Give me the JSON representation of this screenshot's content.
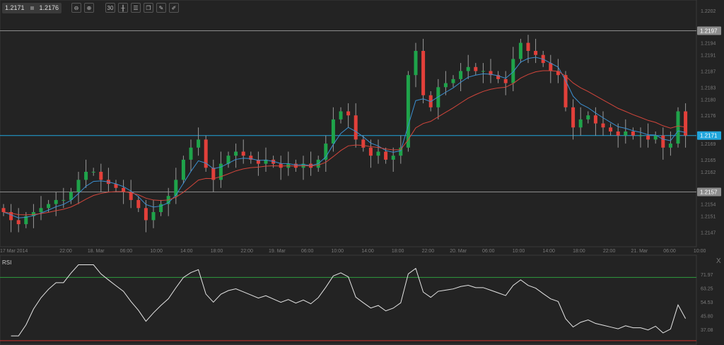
{
  "toolbar": {
    "bid": "1.2171",
    "ask": "1.2176",
    "timeframe": "30",
    "buttons": [
      "zoom-out",
      "zoom-in",
      "timeframe",
      "indicators",
      "settings",
      "clone",
      "edit",
      "draw"
    ]
  },
  "colors": {
    "up": "#1fa34a",
    "down": "#e2403a",
    "ema_fast": "#3b8fd0",
    "ema_slow": "#d2453b",
    "current": "#21a6dd",
    "level": "#8c8c8c",
    "rsi_high": "#2e9b3e",
    "rsi_low": "#c8302c"
  },
  "chart_data": [
    {
      "type": "candlestick",
      "title": "",
      "price_axis": {
        "min": 1.2144,
        "max": 1.2204,
        "ticks": [
          "1.2202",
          "1.2194",
          "1.2191",
          "1.2187",
          "1.2183",
          "1.2180",
          "1.2176",
          "1.2169",
          "1.2165",
          "1.2162",
          "1.2154",
          "1.2151",
          "1.2147"
        ]
      },
      "time_axis": {
        "ticks": [
          "17 Mar 2014",
          "22:00",
          "18. Mar",
          "06:00",
          "10:00",
          "14:00",
          "18:00",
          "22:00",
          "19. Mar",
          "06:00",
          "10:00",
          "14:00",
          "18:00",
          "22:00",
          "20. Mar",
          "06:00",
          "10:00",
          "14:00",
          "18:00",
          "22:00",
          "21. Mar",
          "06:00",
          "10:00"
        ]
      },
      "levels": [
        {
          "label": "1.2197",
          "value": 1.2197
        },
        {
          "label": "1.2157",
          "value": 1.2157
        }
      ],
      "current_price": {
        "label": "1.2171",
        "value": 1.2171
      },
      "closes": [
        1.2152,
        1.215,
        1.2149,
        1.2151,
        1.2152,
        1.2153,
        1.2154,
        1.2155,
        1.2155,
        1.2157,
        1.216,
        1.2162,
        1.2162,
        1.216,
        1.2159,
        1.2158,
        1.2157,
        1.2155,
        1.2153,
        1.215,
        1.2152,
        1.2154,
        1.2156,
        1.216,
        1.2165,
        1.2168,
        1.217,
        1.2163,
        1.216,
        1.2164,
        1.2166,
        1.2167,
        1.2166,
        1.2165,
        1.2164,
        1.2165,
        1.2164,
        1.2163,
        1.2164,
        1.2163,
        1.2164,
        1.2163,
        1.2165,
        1.2169,
        1.2175,
        1.2177,
        1.2176,
        1.217,
        1.2168,
        1.2166,
        1.2167,
        1.2165,
        1.2166,
        1.2168,
        1.2186,
        1.2192,
        1.2181,
        1.2178,
        1.2183,
        1.2184,
        1.2185,
        1.2187,
        1.2188,
        1.2187,
        1.2187,
        1.2186,
        1.2185,
        1.2184,
        1.219,
        1.2194,
        1.2192,
        1.2191,
        1.2189,
        1.2187,
        1.2186,
        1.2178,
        1.2173,
        1.2175,
        1.2176,
        1.2174,
        1.2173,
        1.2172,
        1.2171,
        1.2172,
        1.2171,
        1.2171,
        1.217,
        1.2171,
        1.2168,
        1.2169,
        1.2177,
        1.2171
      ],
      "ema_fast_period": 5,
      "ema_slow_period": 14
    },
    {
      "type": "line",
      "title": "RSI",
      "close_label": "X",
      "yaxis": {
        "min": 28,
        "max": 80,
        "ticks": [
          "71.97",
          "63.25",
          "54.53",
          "45.80",
          "37.08"
        ]
      },
      "levels": [
        70,
        30
      ],
      "period": 14
    }
  ]
}
